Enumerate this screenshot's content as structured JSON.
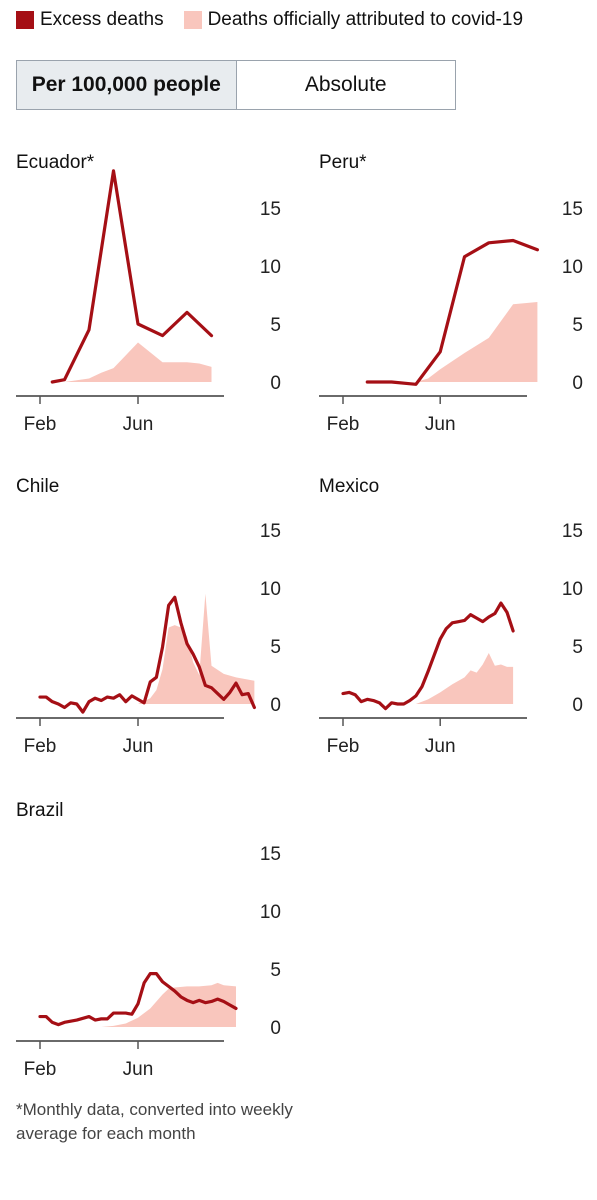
{
  "legend": {
    "excess_label": "Excess deaths",
    "official_label": "Deaths officially attributed to covid-19",
    "colors": {
      "excess": "#a50f15",
      "official": "#f9c6bd"
    }
  },
  "toggle": {
    "options": [
      "Per 100,000 people",
      "Absolute"
    ],
    "selected": "Per 100,000 people"
  },
  "footnote": "*Monthly data, converted into weekly average for each month",
  "chart_data": [
    {
      "type": "line",
      "title": "Ecuador*",
      "x_ticks": [
        "Feb",
        "Jun"
      ],
      "y_ticks": [
        0,
        5,
        10,
        15
      ],
      "ylim": [
        -1,
        19
      ],
      "series": [
        {
          "name": "Excess deaths",
          "style": "line",
          "points": [
            [
              0.5,
              0
            ],
            [
              1,
              0.2
            ],
            [
              2,
              4.5
            ],
            [
              3,
              18.2
            ],
            [
              4,
              5
            ],
            [
              5,
              4
            ],
            [
              6,
              6
            ],
            [
              7,
              4
            ]
          ]
        },
        {
          "name": "Deaths officially attributed to covid-19",
          "style": "area",
          "points": [
            [
              1,
              0
            ],
            [
              2,
              0.3
            ],
            [
              2.5,
              0.8
            ],
            [
              3,
              1.2
            ],
            [
              4,
              3.4
            ],
            [
              5,
              1.7
            ],
            [
              6,
              1.7
            ],
            [
              6.5,
              1.6
            ],
            [
              7,
              1.3
            ]
          ]
        }
      ]
    },
    {
      "type": "line",
      "title": "Peru*",
      "x_ticks": [
        "Feb",
        "Jun"
      ],
      "y_ticks": [
        0,
        5,
        10,
        15
      ],
      "ylim": [
        -1,
        19
      ],
      "series": [
        {
          "name": "Excess deaths",
          "style": "line",
          "points": [
            [
              1,
              0
            ],
            [
              2,
              0
            ],
            [
              3,
              -0.2
            ],
            [
              4,
              2.6
            ],
            [
              5,
              10.8
            ],
            [
              6,
              12
            ],
            [
              7,
              12.2
            ],
            [
              8,
              11.4
            ]
          ]
        },
        {
          "name": "Deaths officially attributed to covid-19",
          "style": "area",
          "points": [
            [
              3,
              0
            ],
            [
              3.5,
              0.3
            ],
            [
              4,
              1.1
            ],
            [
              5,
              2.5
            ],
            [
              6,
              3.8
            ],
            [
              7,
              6.7
            ],
            [
              8,
              6.9
            ]
          ]
        }
      ]
    },
    {
      "type": "line",
      "title": "Chile",
      "x_ticks": [
        "Feb",
        "Jun"
      ],
      "y_ticks": [
        0,
        5,
        10,
        15
      ],
      "ylim": [
        -1,
        19
      ],
      "series": [
        {
          "name": "Excess deaths",
          "style": "line",
          "points": [
            [
              0,
              0.6
            ],
            [
              0.25,
              0.6
            ],
            [
              0.5,
              0.2
            ],
            [
              0.75,
              0
            ],
            [
              1,
              -0.3
            ],
            [
              1.25,
              0.1
            ],
            [
              1.5,
              0
            ],
            [
              1.75,
              -0.7
            ],
            [
              2,
              0.2
            ],
            [
              2.25,
              0.5
            ],
            [
              2.5,
              0.3
            ],
            [
              2.75,
              0.6
            ],
            [
              3,
              0.5
            ],
            [
              3.25,
              0.8
            ],
            [
              3.5,
              0.2
            ],
            [
              3.75,
              0.7
            ],
            [
              4,
              0.4
            ],
            [
              4.25,
              0.1
            ],
            [
              4.5,
              1.9
            ],
            [
              4.75,
              2.3
            ],
            [
              5,
              4.9
            ],
            [
              5.25,
              8.5
            ],
            [
              5.5,
              9.2
            ],
            [
              5.75,
              7
            ],
            [
              6,
              5.2
            ],
            [
              6.25,
              4.3
            ],
            [
              6.5,
              3.2
            ],
            [
              6.75,
              1.6
            ],
            [
              7,
              1.4
            ],
            [
              7.25,
              0.9
            ],
            [
              7.5,
              0.4
            ],
            [
              7.75,
              1
            ],
            [
              8,
              1.8
            ],
            [
              8.25,
              0.8
            ],
            [
              8.5,
              0.9
            ],
            [
              8.75,
              -0.3
            ]
          ]
        },
        {
          "name": "Deaths officially attributed to covid-19",
          "style": "area",
          "points": [
            [
              4,
              0
            ],
            [
              4.5,
              0.5
            ],
            [
              4.75,
              1.2
            ],
            [
              5,
              3
            ],
            [
              5.25,
              6.6
            ],
            [
              5.5,
              6.8
            ],
            [
              5.75,
              6.6
            ],
            [
              6,
              5.8
            ],
            [
              6.25,
              3.6
            ],
            [
              6.5,
              2.5
            ],
            [
              6.75,
              9.5
            ],
            [
              7,
              3.3
            ],
            [
              7.5,
              2.6
            ],
            [
              8,
              2.3
            ],
            [
              8.5,
              2.1
            ],
            [
              8.75,
              2
            ]
          ]
        }
      ]
    },
    {
      "type": "line",
      "title": "Mexico",
      "x_ticks": [
        "Feb",
        "Jun"
      ],
      "y_ticks": [
        0,
        5,
        10,
        15
      ],
      "ylim": [
        -1,
        19
      ],
      "series": [
        {
          "name": "Excess deaths",
          "style": "line",
          "points": [
            [
              0,
              0.9
            ],
            [
              0.25,
              1
            ],
            [
              0.5,
              0.8
            ],
            [
              0.75,
              0.2
            ],
            [
              1,
              0.4
            ],
            [
              1.25,
              0.3
            ],
            [
              1.5,
              0.1
            ],
            [
              1.75,
              -0.4
            ],
            [
              2,
              0.1
            ],
            [
              2.25,
              0
            ],
            [
              2.5,
              0
            ],
            [
              2.75,
              0.3
            ],
            [
              3,
              0.7
            ],
            [
              3.25,
              1.5
            ],
            [
              3.5,
              2.8
            ],
            [
              3.75,
              4.2
            ],
            [
              4,
              5.6
            ],
            [
              4.25,
              6.5
            ],
            [
              4.5,
              7
            ],
            [
              4.75,
              7.1
            ],
            [
              5,
              7.2
            ],
            [
              5.25,
              7.7
            ],
            [
              5.5,
              7.4
            ],
            [
              5.75,
              7.1
            ],
            [
              6,
              7.5
            ],
            [
              6.25,
              7.8
            ],
            [
              6.5,
              8.7
            ],
            [
              6.75,
              7.9
            ],
            [
              7,
              6.3
            ]
          ]
        },
        {
          "name": "Deaths officially attributed to covid-19",
          "style": "area",
          "points": [
            [
              3,
              0
            ],
            [
              3.5,
              0.4
            ],
            [
              4,
              1
            ],
            [
              4.5,
              1.7
            ],
            [
              5,
              2.3
            ],
            [
              5.25,
              2.9
            ],
            [
              5.5,
              2.7
            ],
            [
              5.75,
              3.4
            ],
            [
              6,
              4.4
            ],
            [
              6.25,
              3.3
            ],
            [
              6.5,
              3.4
            ],
            [
              6.75,
              3.2
            ],
            [
              7,
              3.2
            ]
          ]
        }
      ]
    },
    {
      "type": "line",
      "title": "Brazil",
      "x_ticks": [
        "Feb",
        "Jun"
      ],
      "y_ticks": [
        0,
        5,
        10,
        15
      ],
      "ylim": [
        -1,
        19
      ],
      "series": [
        {
          "name": "Excess deaths",
          "style": "line",
          "points": [
            [
              0,
              0.9
            ],
            [
              0.25,
              0.9
            ],
            [
              0.5,
              0.4
            ],
            [
              0.75,
              0.2
            ],
            [
              1,
              0.4
            ],
            [
              1.5,
              0.6
            ],
            [
              2,
              0.9
            ],
            [
              2.25,
              0.6
            ],
            [
              2.5,
              0.7
            ],
            [
              2.75,
              0.7
            ],
            [
              3,
              1.2
            ],
            [
              3.5,
              1.2
            ],
            [
              3.75,
              1.1
            ],
            [
              4,
              2
            ],
            [
              4.25,
              3.8
            ],
            [
              4.5,
              4.6
            ],
            [
              4.75,
              4.6
            ],
            [
              5,
              3.9
            ],
            [
              5.25,
              3.5
            ],
            [
              5.5,
              3.1
            ],
            [
              5.75,
              2.6
            ],
            [
              6,
              2.3
            ],
            [
              6.25,
              2.1
            ],
            [
              6.5,
              2.3
            ],
            [
              6.75,
              2.1
            ],
            [
              7,
              2.2
            ],
            [
              7.25,
              2.4
            ],
            [
              7.5,
              2.2
            ],
            [
              7.75,
              1.9
            ],
            [
              8,
              1.6
            ]
          ]
        },
        {
          "name": "Deaths officially attributed to covid-19",
          "style": "area",
          "points": [
            [
              2.5,
              0
            ],
            [
              3,
              0.1
            ],
            [
              3.5,
              0.3
            ],
            [
              4,
              0.8
            ],
            [
              4.5,
              1.6
            ],
            [
              5,
              2.8
            ],
            [
              5.25,
              3.3
            ],
            [
              5.5,
              3.4
            ],
            [
              6,
              3.5
            ],
            [
              6.5,
              3.5
            ],
            [
              7,
              3.6
            ],
            [
              7.25,
              3.8
            ],
            [
              7.5,
              3.6
            ],
            [
              8,
              3.5
            ]
          ]
        }
      ]
    }
  ]
}
